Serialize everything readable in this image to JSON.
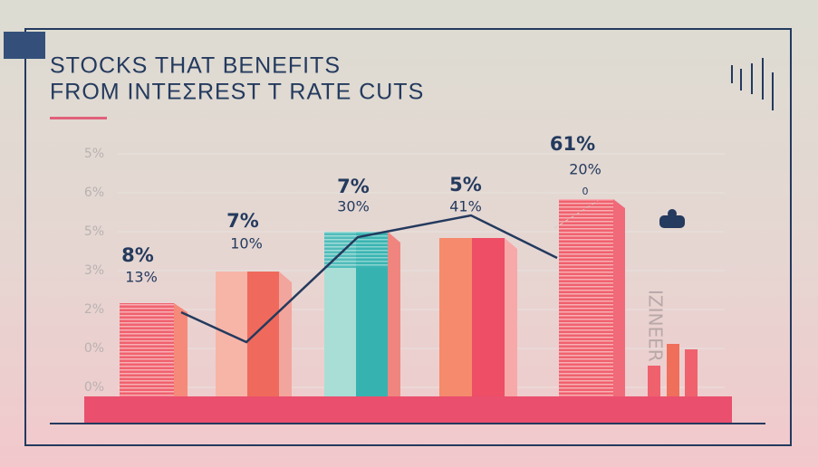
{
  "header": {
    "title": [
      "STOCKS THAT BENEFITS",
      "FROM INTEΣREST T RATE CUTS"
    ]
  },
  "axis_labels": [
    "5%",
    "6%",
    "5%",
    "3%",
    "2%",
    "0%",
    "0%"
  ],
  "bars": [
    {
      "top": "8%",
      "bottom": "13%"
    },
    {
      "top": "7%",
      "bottom": "10%"
    },
    {
      "top": "7%",
      "bottom": "30%"
    },
    {
      "top": "5%",
      "bottom": "41%"
    },
    {
      "top": "61%",
      "bottom": "20%",
      "note": "0"
    }
  ],
  "side_text": "IZINEER"
}
